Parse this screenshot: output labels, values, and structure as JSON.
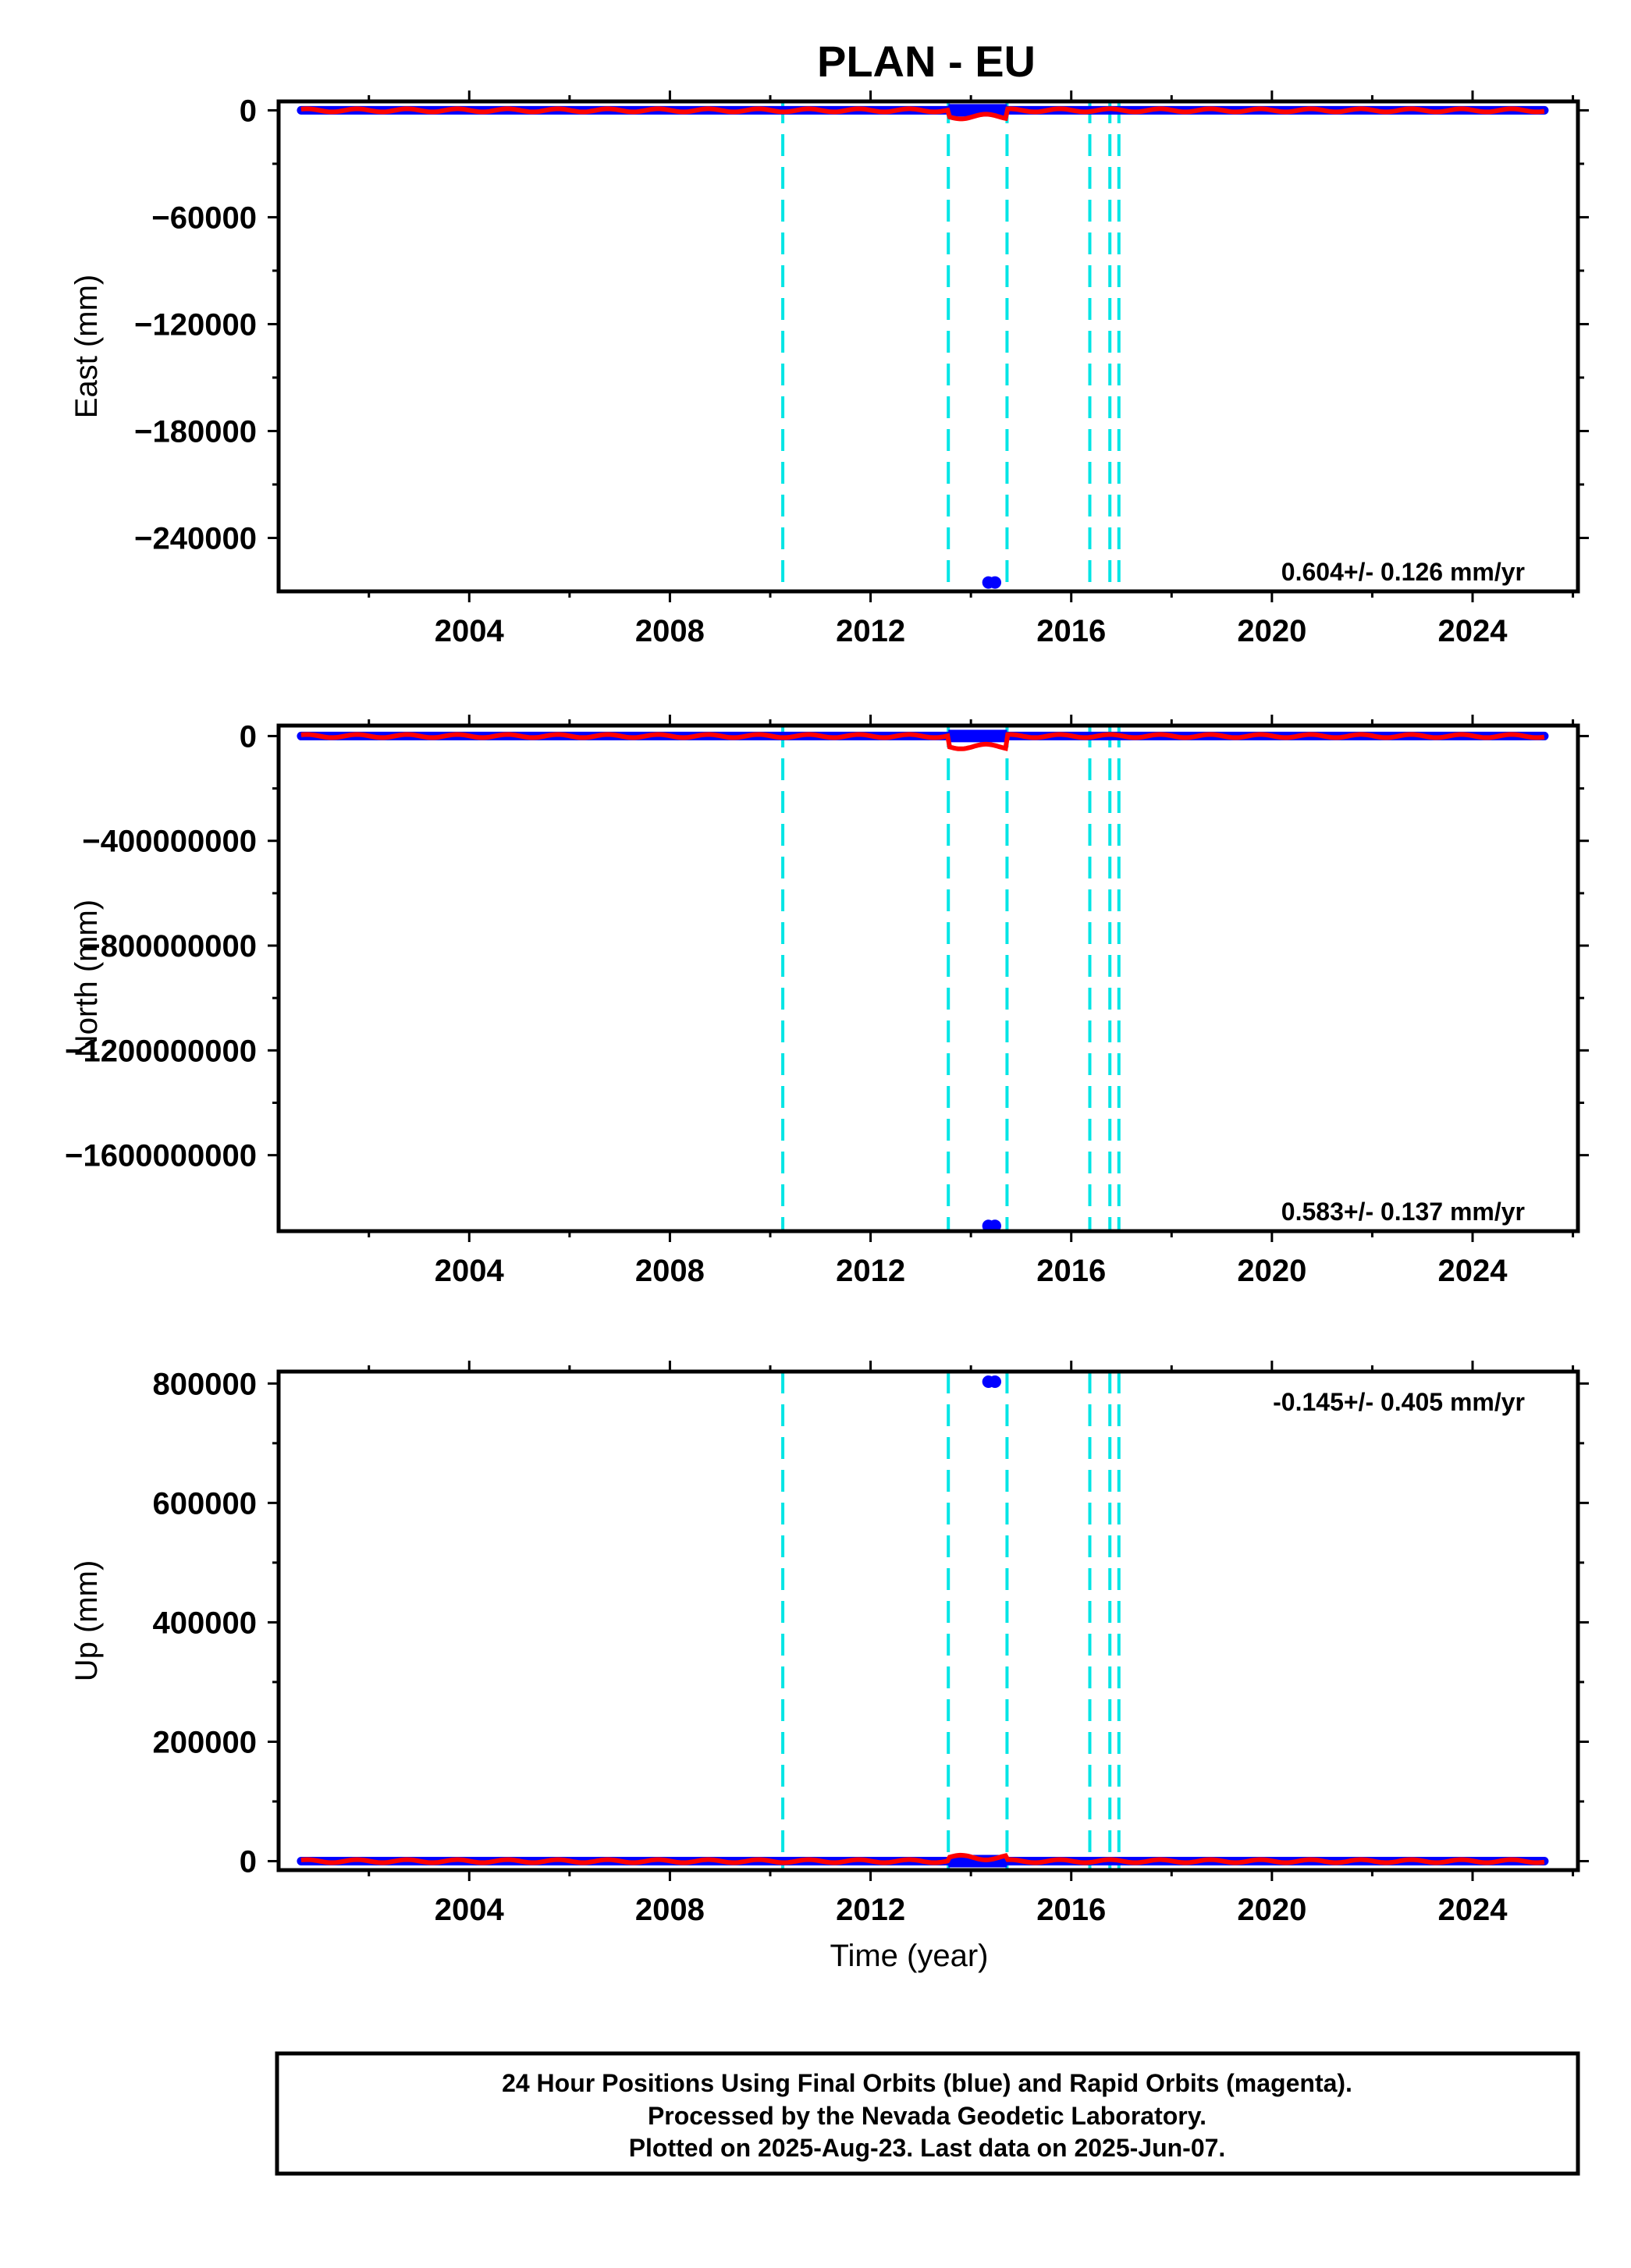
{
  "chart_data": {
    "type": "scatter",
    "title": "PLAN - EU",
    "colors": {
      "final": "#0000ff",
      "model": "#ff0000",
      "break": "#00e5e5",
      "frame": "#000000"
    },
    "xlabel": "Time (year)",
    "xlim": [
      2000.2,
      2026.1
    ],
    "x_ticks": [
      2004,
      2008,
      2012,
      2016,
      2020,
      2024
    ],
    "x_tick_labels": [
      "2004",
      "2008",
      "2012",
      "2016",
      "2020",
      "2024"
    ],
    "x_minor_step": 2,
    "breaks": [
      2010.25,
      2013.55,
      2014.72,
      2016.37,
      2016.77,
      2016.95
    ],
    "data_range": [
      2000.65,
      2025.43
    ],
    "outlier_times": [
      2014.35,
      2014.48
    ],
    "panels": [
      {
        "key": "east",
        "ylabel": "East (mm)",
        "ylim": [
          -270000,
          5000
        ],
        "y_ticks": [
          0,
          -60000,
          -120000,
          -180000,
          -240000
        ],
        "y_tick_labels": [
          "0",
          "−60000",
          "−120000",
          "−180000",
          "−240000"
        ],
        "y_minor": [
          -30000,
          -90000,
          -150000,
          -210000
        ],
        "rate_text": "0.604+/- 0.126 mm/yr",
        "rate_pos": "bottom-right",
        "baseline": 0,
        "offset_range": [
          2013.55,
          2014.72
        ],
        "offset_value": -3500,
        "outlier_value": -265000
      },
      {
        "key": "north",
        "ylabel": "North (mm)",
        "ylim": [
          -1890000000,
          40000000
        ],
        "y_ticks": [
          0,
          -400000000,
          -800000000,
          -1200000000,
          -1600000000
        ],
        "y_tick_labels": [
          "0",
          "−400000000",
          "−800000000",
          "−1200000000",
          "−1600000000"
        ],
        "y_minor": [
          -200000000,
          -600000000,
          -1000000000,
          -1400000000
        ],
        "rate_text": "0.583+/- 0.137 mm/yr",
        "rate_pos": "bottom-right",
        "baseline": 0,
        "offset_range": [
          2013.55,
          2014.72
        ],
        "offset_value": -40000000,
        "outlier_value": -1870000000
      },
      {
        "key": "up",
        "ylabel": "Up (mm)",
        "ylim": [
          -15000,
          820000
        ],
        "y_ticks": [
          0,
          200000,
          400000,
          600000,
          800000
        ],
        "y_tick_labels": [
          "0",
          "200000",
          "400000",
          "600000",
          "800000"
        ],
        "y_minor": [
          100000,
          300000,
          500000,
          700000
        ],
        "rate_text": "-0.145+/- 0.405 mm/yr",
        "rate_pos": "top-right",
        "baseline": 0,
        "offset_range": [
          2013.55,
          2014.72
        ],
        "offset_value": 6000,
        "outlier_value": 803000
      }
    ]
  },
  "footer": {
    "line1": "24 Hour Positions Using Final Orbits (blue) and Rapid Orbits (magenta).",
    "line2": "Processed by the Nevada Geodetic Laboratory.",
    "line3": "Plotted on 2025-Aug-23. Last data on 2025-Jun-07."
  }
}
